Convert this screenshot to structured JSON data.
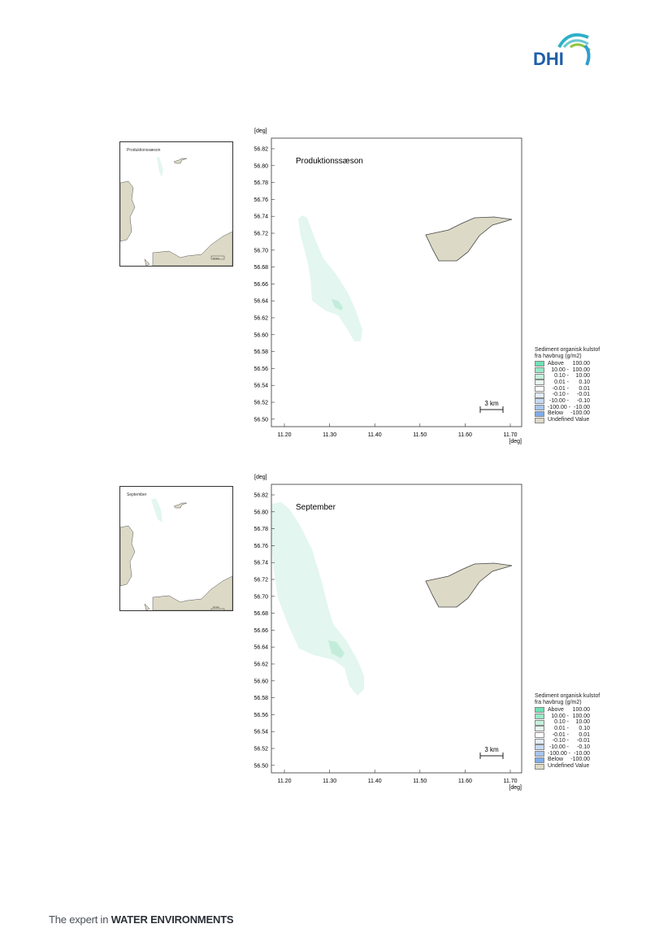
{
  "footer": {
    "prefix": "The expert in ",
    "bold": "WATER ENVIRONMENTS"
  },
  "logo_text": "DHI",
  "colors": {
    "land": "#dcd9c6",
    "plume": "#e3f6ef",
    "plume_high": "#c3edda",
    "frame": "#333333"
  },
  "panels": [
    {
      "map_title": "Produktionssæson",
      "inset_label": "Produktionssæson",
      "inset_scale": "10 km",
      "scale_bar": "3 km",
      "y_unit": "[deg]",
      "x_unit": "[deg]",
      "y_ticks": [
        "56.82",
        "56.80",
        "56.78",
        "56.76",
        "56.74",
        "56.72",
        "56.70",
        "56.68",
        "56.66",
        "56.64",
        "56.62",
        "56.60",
        "56.58",
        "56.56",
        "56.54",
        "56.52",
        "56.50"
      ],
      "x_ticks": [
        "11.20",
        "11.30",
        "11.40",
        "11.50",
        "11.60",
        "11.70"
      ],
      "legend": {
        "title_line1": "Sediment organisk kulstof",
        "title_line2": "fra havbrug (g/m2)",
        "rows": [
          {
            "label": "Above",
            "value": "100.00",
            "color": "#6fe0b6"
          },
          {
            "label": "10.00 -",
            "value": "100.00",
            "color": "#99e8c8"
          },
          {
            "label": "0.10 -",
            "value": "10.00",
            "color": "#c3f0dc"
          },
          {
            "label": "0.01 -",
            "value": "0.10",
            "color": "#e6f8f0"
          },
          {
            "label": "-0.01 -",
            "value": "0.01",
            "color": "#ffffff"
          },
          {
            "label": "-0.10 -",
            "value": "-0.01",
            "color": "#e3ecf9"
          },
          {
            "label": "-10.00 -",
            "value": "-0.10",
            "color": "#c6d9f3"
          },
          {
            "label": "-100.00 -",
            "value": "-10.00",
            "color": "#a6c5ee"
          },
          {
            "label": "Below",
            "value": "-100.00",
            "color": "#7fadea"
          },
          {
            "label": "Undefined Value",
            "value": "",
            "color": "#dcd9c6"
          }
        ]
      }
    },
    {
      "map_title": "September",
      "inset_label": "September",
      "inset_scale": "10 km",
      "scale_bar": "3 km",
      "y_unit": "[deg]",
      "x_unit": "[deg]",
      "y_ticks": [
        "56.82",
        "56.80",
        "56.78",
        "56.76",
        "56.74",
        "56.72",
        "56.70",
        "56.68",
        "56.66",
        "56.64",
        "56.62",
        "56.60",
        "56.58",
        "56.56",
        "56.54",
        "56.52",
        "56.50"
      ],
      "x_ticks": [
        "11.20",
        "11.30",
        "11.40",
        "11.50",
        "11.60",
        "11.70"
      ],
      "legend": {
        "title_line1": "Sediment organisk kulstof",
        "title_line2": "fra havbrug (g/m2)",
        "rows": [
          {
            "label": "Above",
            "value": "100.00",
            "color": "#6fe0b6"
          },
          {
            "label": "10.00 -",
            "value": "100.00",
            "color": "#99e8c8"
          },
          {
            "label": "0.10 -",
            "value": "10.00",
            "color": "#c3f0dc"
          },
          {
            "label": "0.01 -",
            "value": "0.10",
            "color": "#e6f8f0"
          },
          {
            "label": "-0.01 -",
            "value": "0.01",
            "color": "#ffffff"
          },
          {
            "label": "-0.10 -",
            "value": "-0.01",
            "color": "#e3ecf9"
          },
          {
            "label": "-10.00 -",
            "value": "-0.10",
            "color": "#c6d9f3"
          },
          {
            "label": "-100.00 -",
            "value": "-10.00",
            "color": "#a6c5ee"
          },
          {
            "label": "Below",
            "value": "-100.00",
            "color": "#7fadea"
          },
          {
            "label": "Undefined Value",
            "value": "",
            "color": "#dcd9c6"
          }
        ]
      }
    }
  ]
}
